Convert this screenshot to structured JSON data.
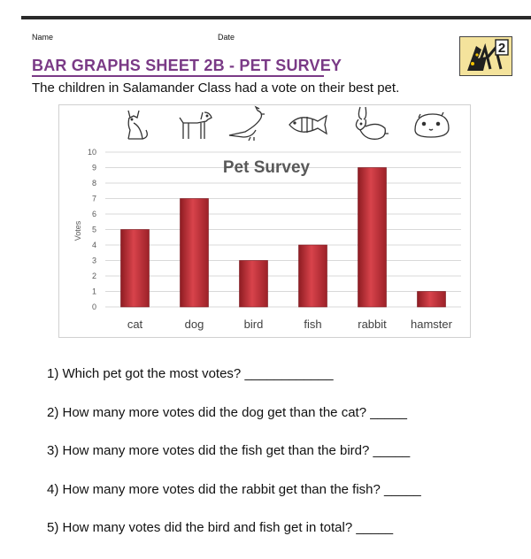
{
  "header": {
    "name_label": "Name",
    "date_label": "Date",
    "logo_text": "2"
  },
  "worksheet": {
    "title": "BAR GRAPHS SHEET 2B - PET SURVEY",
    "intro": "The children in Salamander Class had a vote on their best pet."
  },
  "chart_data": {
    "type": "bar",
    "title": "Pet Survey",
    "xlabel": "",
    "ylabel": "Votes",
    "categories": [
      "cat",
      "dog",
      "bird",
      "fish",
      "rabbit",
      "hamster"
    ],
    "values": [
      5,
      7,
      3,
      4,
      9,
      1
    ],
    "ylim": [
      0,
      10
    ],
    "yticks": [
      0,
      1,
      2,
      3,
      4,
      5,
      6,
      7,
      8,
      9,
      10
    ],
    "grid": true,
    "legend": "none",
    "bar_color": "#c8323a",
    "category_icons": [
      "cat-icon",
      "dog-icon",
      "bird-icon",
      "fish-icon",
      "rabbit-icon",
      "hamster-icon"
    ]
  },
  "questions": [
    "1) Which pet got the most votes? ____________",
    "2) How many more votes did the dog get than the cat? _____",
    "3) How many more votes did the fish get than the bird? _____",
    "4) How many more votes did the rabbit get than the fish? _____",
    "5) How many votes did the bird and fish get in total? _____"
  ],
  "colors": {
    "title": "#7a3a86",
    "bar": "#c8323a",
    "grid": "#d9d9d9"
  }
}
